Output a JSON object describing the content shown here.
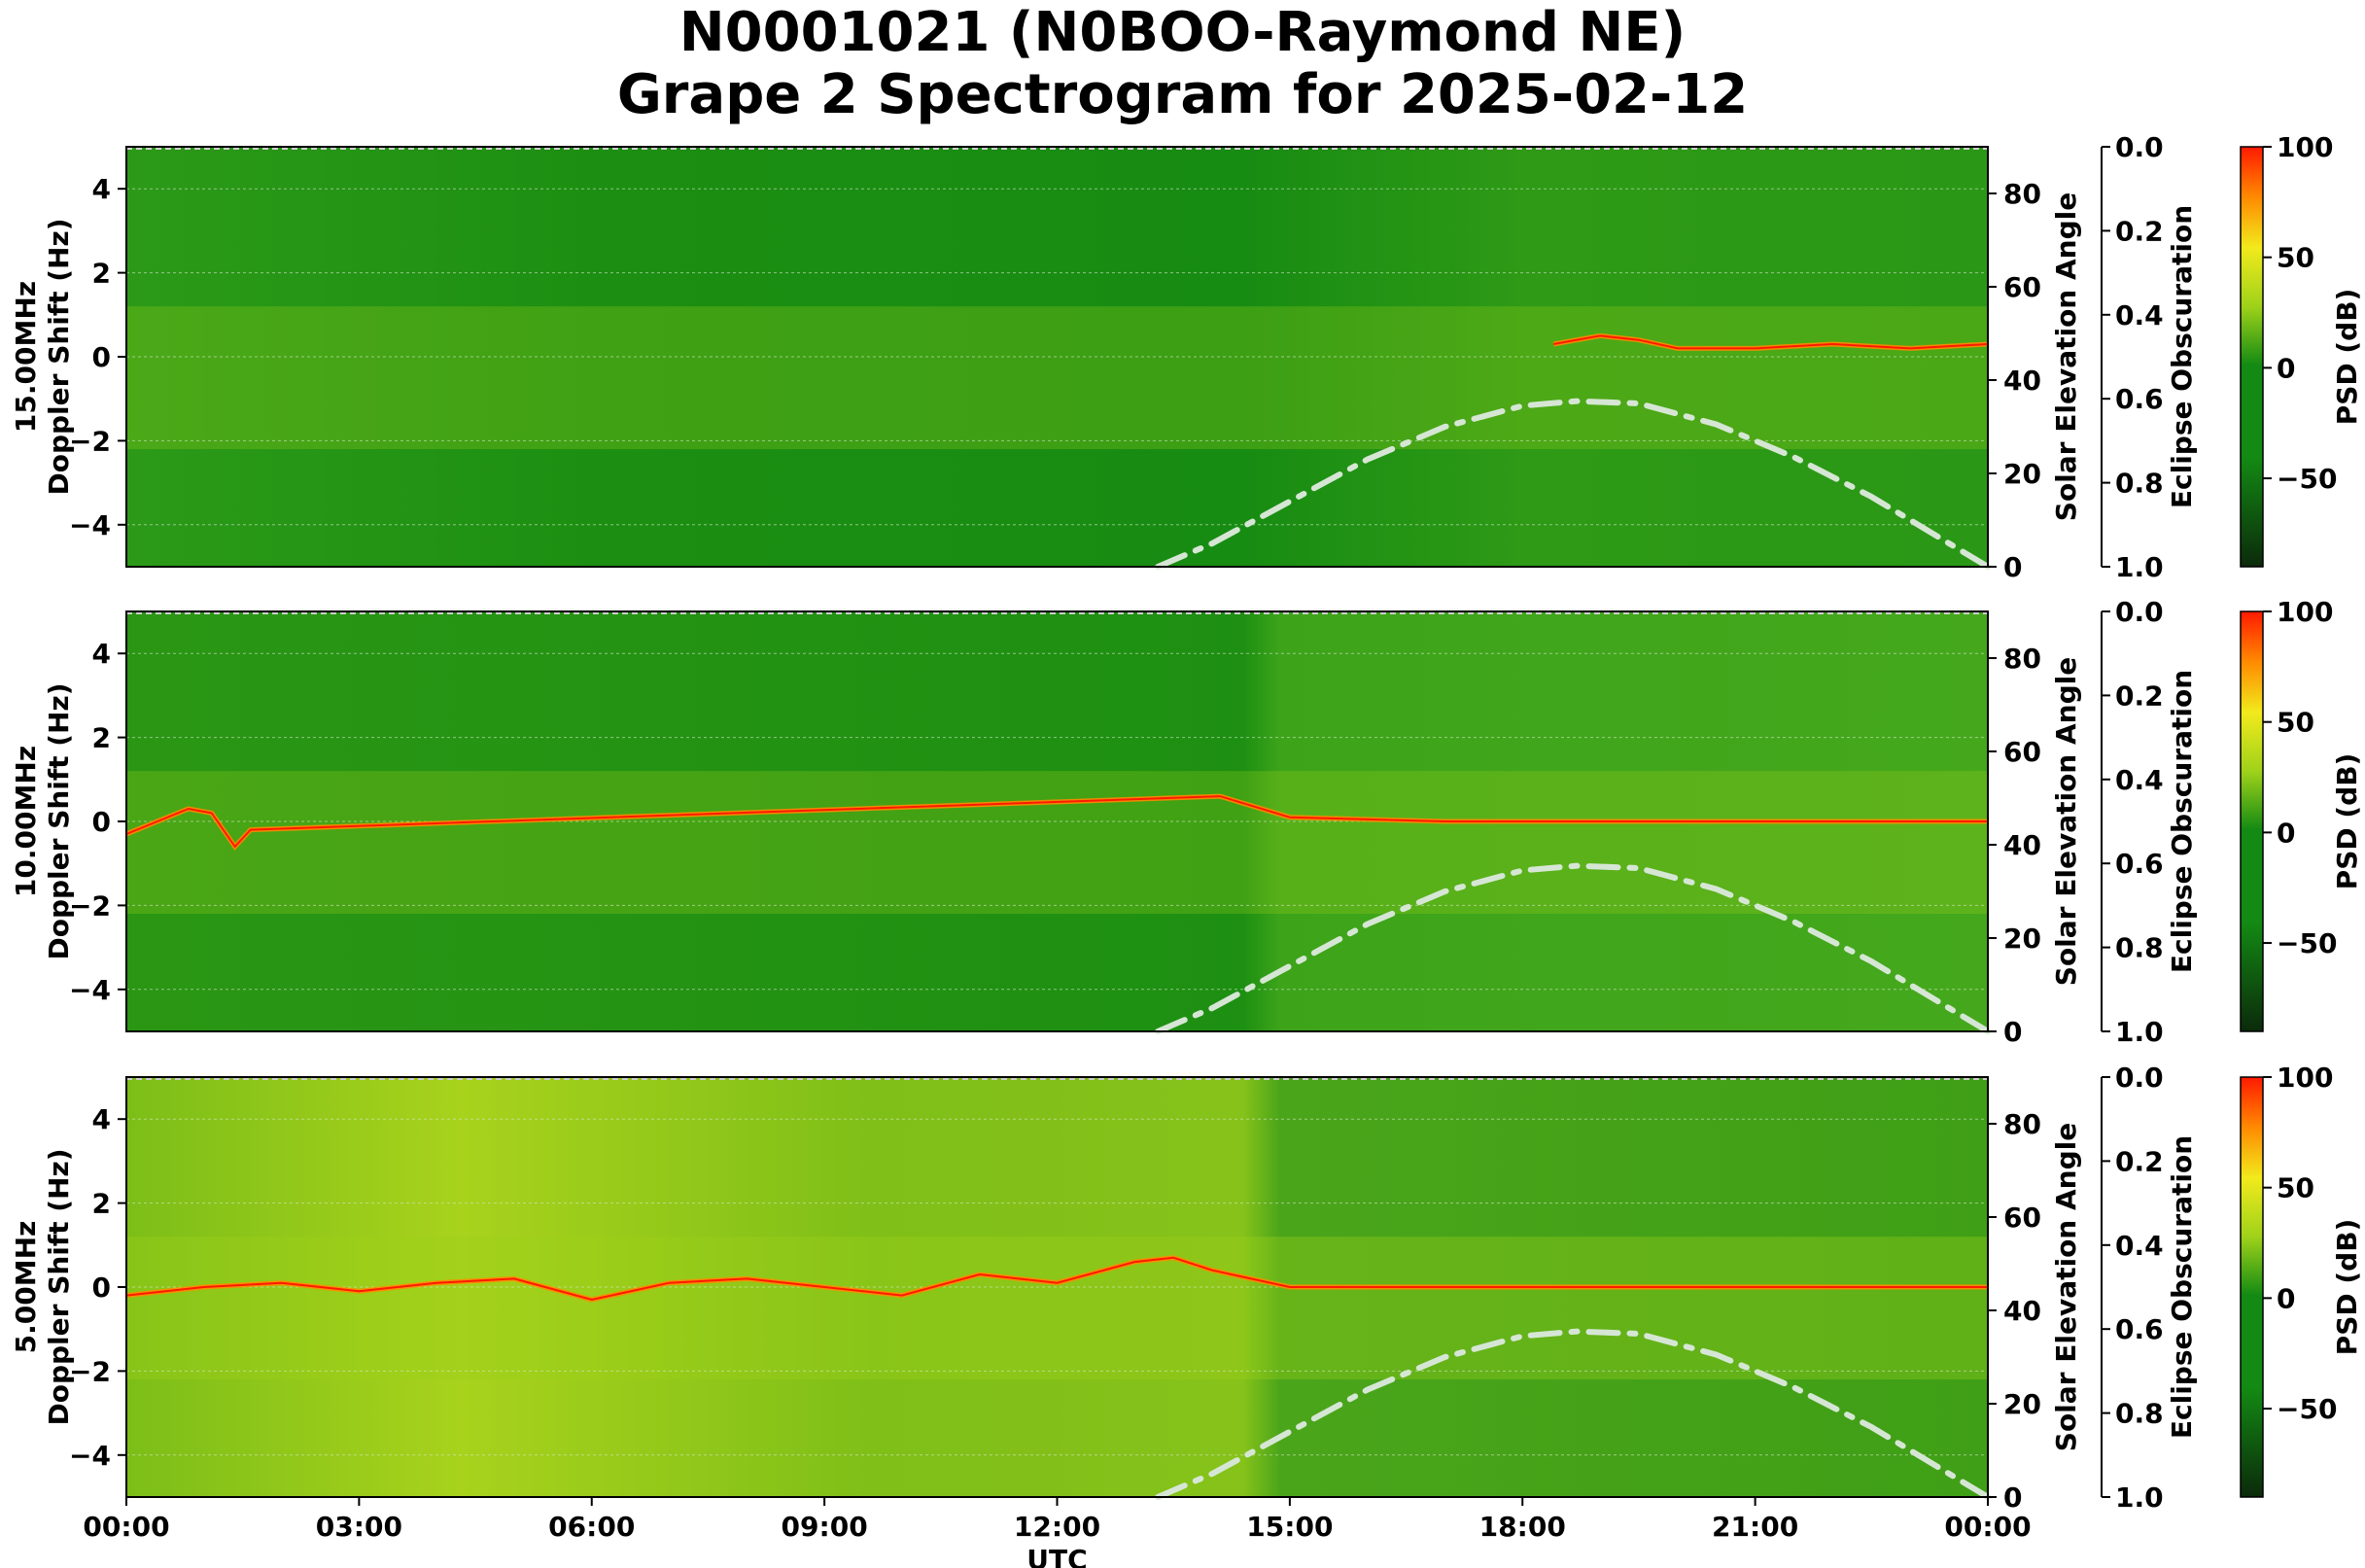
{
  "chart_data": {
    "type": "heatmap",
    "title": [
      "N0001021 (N0BOO-Raymond NE)",
      "Grape 2 Spectrogram for 2025-02-12"
    ],
    "xlabel": "UTC",
    "x_ticks": [
      "00:00",
      "03:00",
      "06:00",
      "09:00",
      "12:00",
      "15:00",
      "18:00",
      "21:00",
      "00:00"
    ],
    "x_range_hours": [
      0,
      24
    ],
    "colors": {
      "dark": "#0b2a0b",
      "green": "#138a13",
      "lime": "#9fd21a",
      "yellow": "#f2ea1c",
      "orange": "#ff8a00",
      "red": "#ff1a00",
      "eclipse_curve": "#d6e6d4"
    },
    "panels": [
      {
        "band": "15.00MHz",
        "ylabel": "Doppler Shift (Hz)",
        "y_range": [
          -5,
          5
        ],
        "y_ticks": [
          "4",
          "2",
          "0",
          "−2",
          "−4"
        ],
        "y_tick_values": [
          4,
          2,
          0,
          -2,
          -4
        ],
        "solar_axis_label": "Solar Elevation Angle",
        "solar_ticks": [
          "0",
          "20",
          "40",
          "60",
          "80"
        ],
        "solar_range": [
          0,
          90
        ],
        "eclipse_label": "Eclipse Obscuration",
        "eclipse_ticks": [
          "0.0",
          "0.2",
          "0.4",
          "0.6",
          "0.8",
          "1.0"
        ],
        "colorbar_label": "PSD (dB)",
        "colorbar_ticks": [
          "100",
          "50",
          "0",
          "−50"
        ],
        "colorbar_tick_values": [
          100,
          50,
          0,
          -50
        ],
        "colorbar_range": [
          -90,
          100
        ]
      },
      {
        "band": "10.00MHz",
        "ylabel": "Doppler Shift (Hz)",
        "y_range": [
          -5,
          5
        ],
        "y_ticks": [
          "4",
          "2",
          "0",
          "−2",
          "−4"
        ],
        "y_tick_values": [
          4,
          2,
          0,
          -2,
          -4
        ],
        "solar_axis_label": "Solar Elevation Angle",
        "solar_ticks": [
          "0",
          "20",
          "40",
          "60",
          "80"
        ],
        "solar_range": [
          0,
          90
        ],
        "eclipse_label": "Eclipse Obscuration",
        "eclipse_ticks": [
          "0.0",
          "0.2",
          "0.4",
          "0.6",
          "0.8",
          "1.0"
        ],
        "colorbar_label": "PSD (dB)",
        "colorbar_ticks": [
          "100",
          "50",
          "0",
          "−50"
        ],
        "colorbar_tick_values": [
          100,
          50,
          0,
          -50
        ],
        "colorbar_range": [
          -90,
          100
        ]
      },
      {
        "band": "5.00MHz",
        "ylabel": "Doppler Shift (Hz)",
        "y_range": [
          -5,
          5
        ],
        "y_ticks": [
          "4",
          "2",
          "0",
          "−2",
          "−4"
        ],
        "y_tick_values": [
          4,
          2,
          0,
          -2,
          -4
        ],
        "solar_axis_label": "Solar Elevation Angle",
        "solar_ticks": [
          "0",
          "20",
          "40",
          "60",
          "80"
        ],
        "solar_range": [
          0,
          90
        ],
        "eclipse_label": "Eclipse Obscuration",
        "eclipse_ticks": [
          "0.0",
          "0.2",
          "0.4",
          "0.6",
          "0.8",
          "1.0"
        ],
        "colorbar_label": "PSD (dB)",
        "colorbar_ticks": [
          "100",
          "50",
          "0",
          "−50"
        ],
        "colorbar_tick_values": [
          100,
          50,
          0,
          -50
        ],
        "colorbar_range": [
          -90,
          100
        ]
      }
    ],
    "solar_elevation_curve": {
      "hours": [
        13.3,
        14,
        15,
        16,
        17,
        18,
        18.7,
        19.5,
        20.5,
        21.5,
        22.5,
        23.5,
        24
      ],
      "degrees": [
        0,
        5,
        14,
        23,
        30,
        34.5,
        35.5,
        35,
        30.5,
        23.5,
        15,
        5,
        0
      ]
    },
    "carrier_trace_15MHz": {
      "hours": [
        18.4,
        19,
        19.5,
        20,
        21,
        22,
        23,
        24
      ],
      "hz": [
        0.3,
        0.5,
        0.4,
        0.2,
        0.2,
        0.3,
        0.2,
        0.3
      ]
    },
    "carrier_trace_10MHz": {
      "hours": [
        0,
        0.4,
        0.8,
        1.1,
        1.4,
        1.6,
        14.1,
        15,
        17,
        19,
        21,
        23,
        24
      ],
      "hz": [
        -0.3,
        0.0,
        0.3,
        0.2,
        -0.6,
        -0.2,
        0.6,
        0.1,
        0.0,
        0.0,
        0.0,
        0.0,
        0.0
      ]
    },
    "carrier_trace_5MHz": {
      "hours": [
        0,
        1,
        2,
        3,
        4,
        5,
        6,
        7,
        8,
        9,
        10,
        11,
        12,
        13,
        13.5,
        14,
        15,
        18,
        21,
        24
      ],
      "hz": [
        -0.2,
        0.0,
        0.1,
        -0.1,
        0.1,
        0.2,
        -0.3,
        0.1,
        0.2,
        0.0,
        -0.2,
        0.3,
        0.1,
        0.6,
        0.7,
        0.4,
        0.0,
        0.0,
        0.0,
        0.0
      ]
    }
  }
}
